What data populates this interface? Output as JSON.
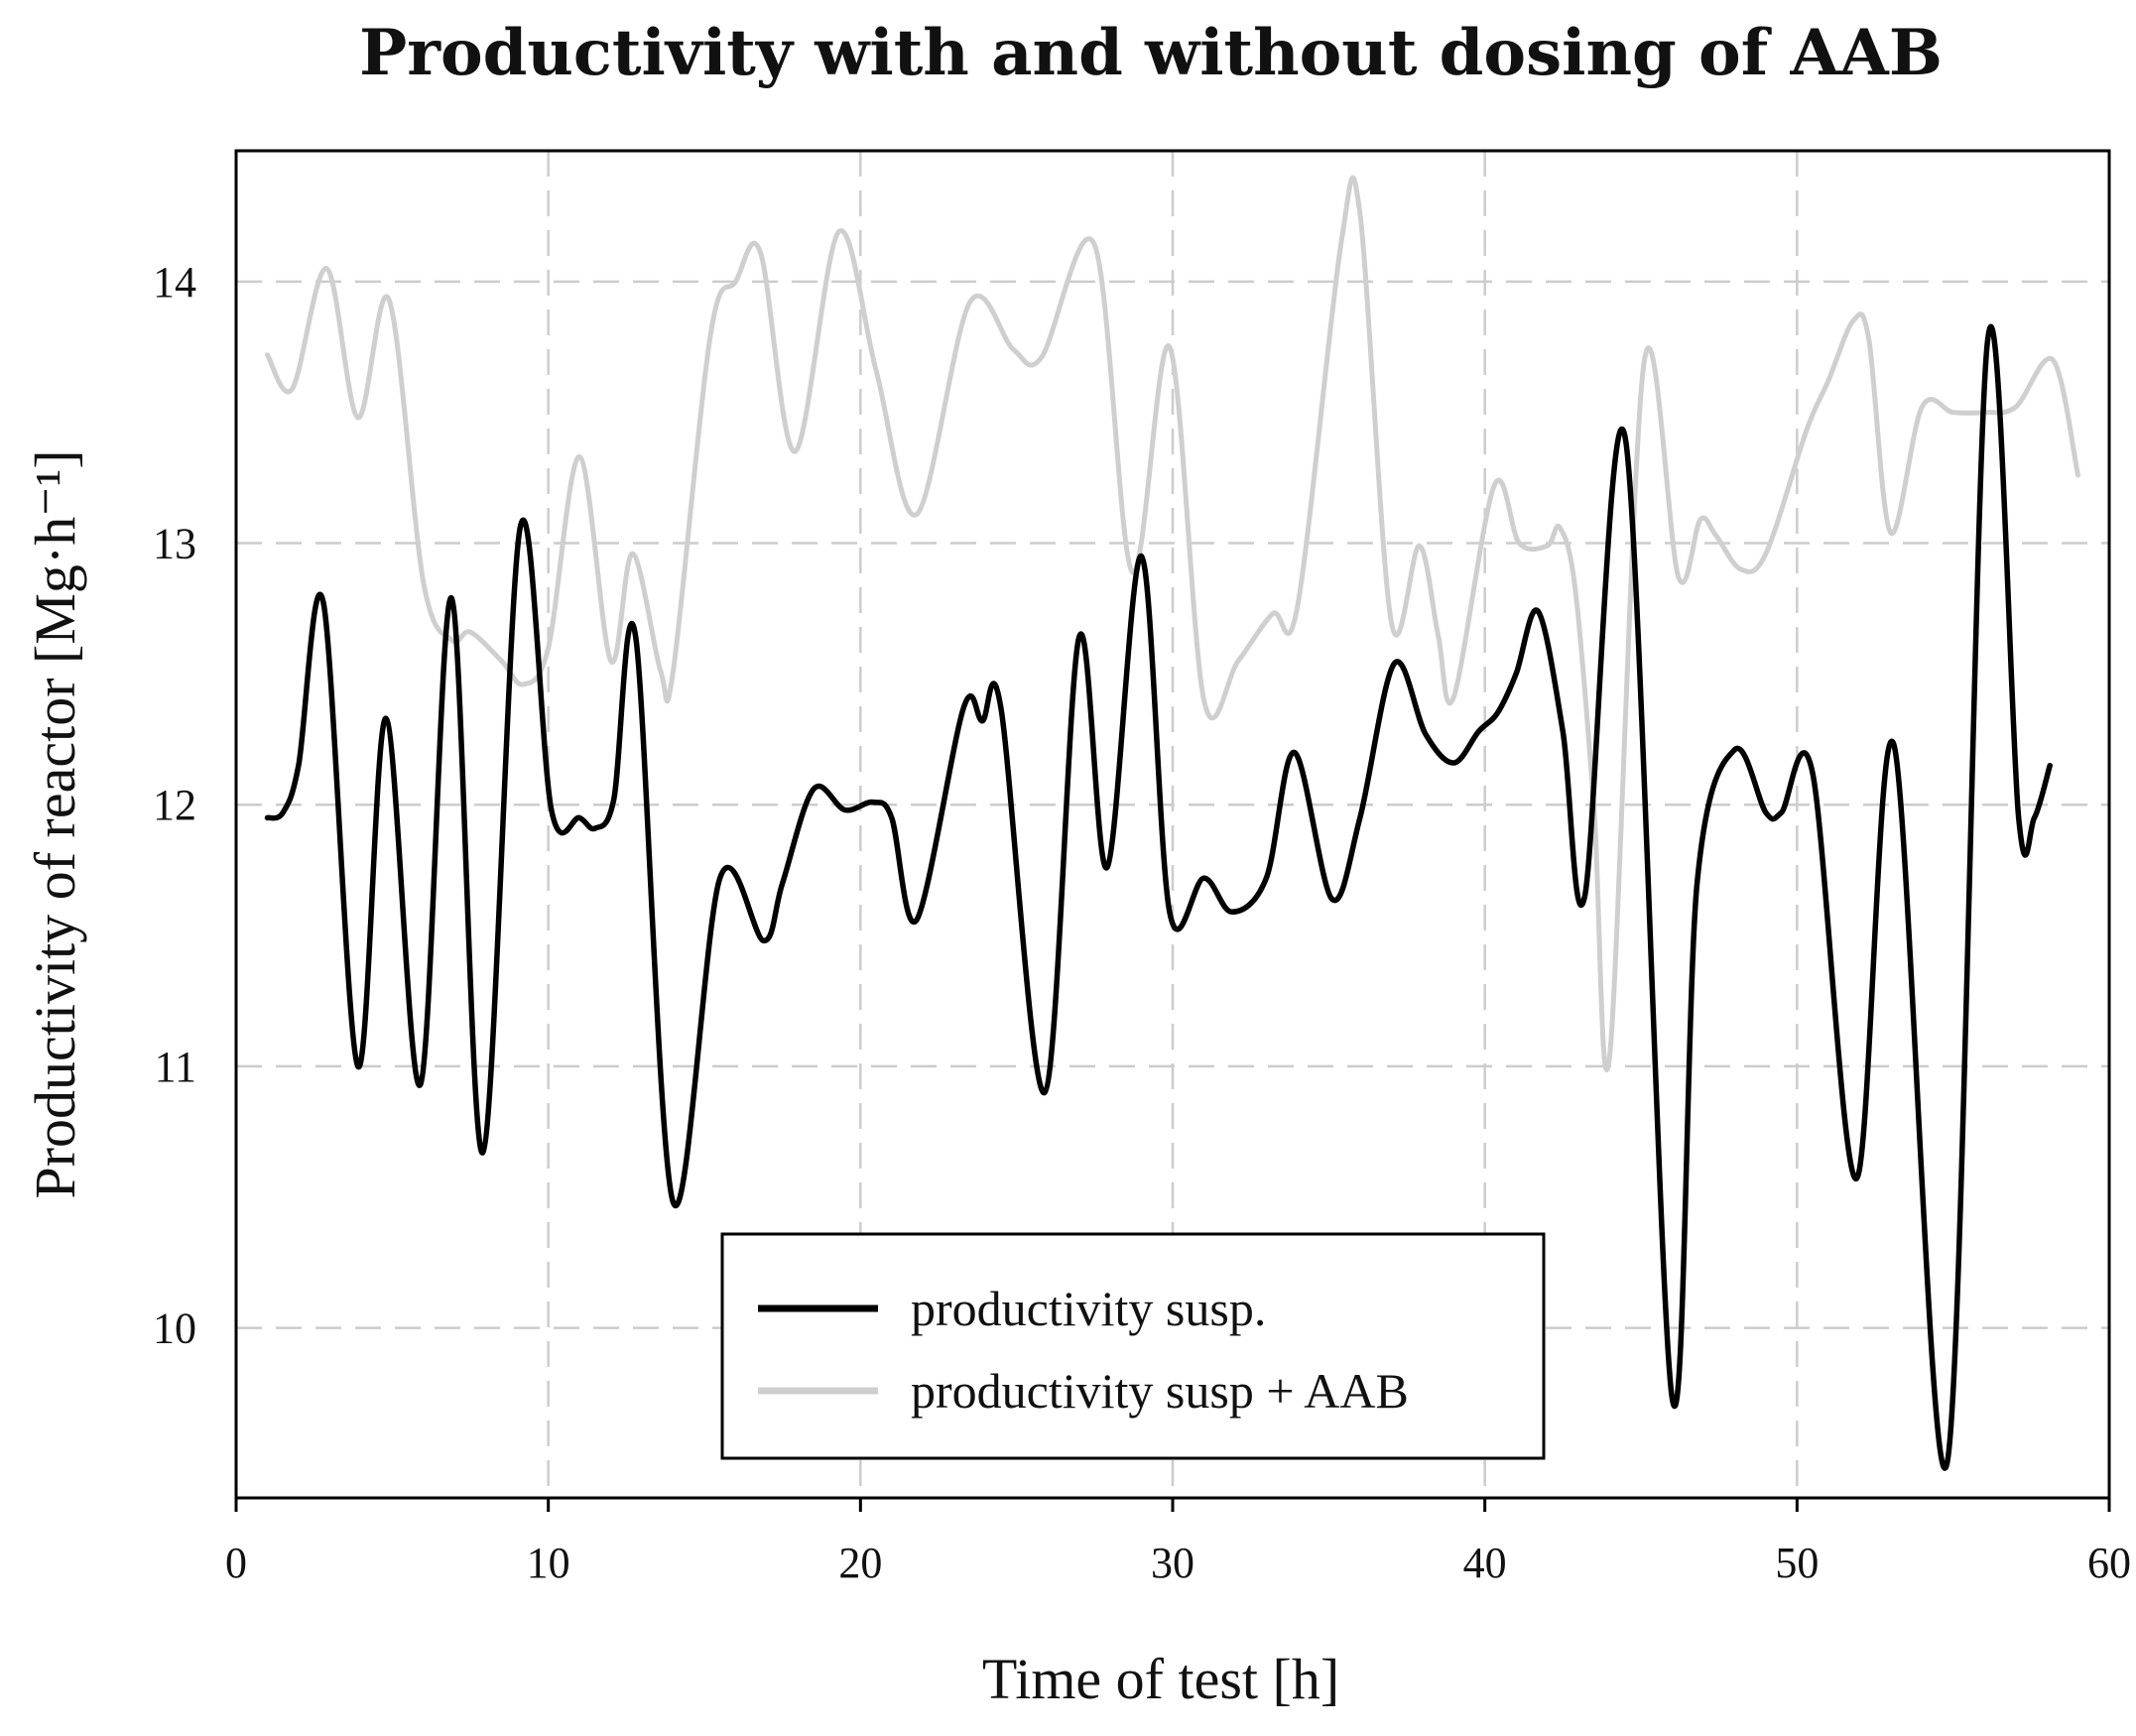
{
  "chart_data": {
    "type": "line",
    "title": "Productivity with and without dosing of AAB",
    "xlabel": "Time of test [h]",
    "ylabel": "Productivity of reactor [Mg·h⁻¹]",
    "xlim": [
      0,
      60
    ],
    "ylim": [
      9.35,
      14.5
    ],
    "xticks": [
      0,
      10,
      20,
      30,
      40,
      50,
      60
    ],
    "yticks": [
      10,
      11,
      12,
      13,
      14
    ],
    "grid": true,
    "legend_position": "bottom-center",
    "series": [
      {
        "name": "productivity susp.",
        "color": "#000000",
        "x": [
          1,
          1.5,
          2,
          2.8,
          3.9,
          4.8,
          5.9,
          6.9,
          7.9,
          9.1,
          10.1,
          11.0,
          11.5,
          12.1,
          12.8,
          14.0,
          15.5,
          16.9,
          17.5,
          18.5,
          19.5,
          20.4,
          21.0,
          21.8,
          23.3,
          23.9,
          24.5,
          25.9,
          27.0,
          27.9,
          29.0,
          29.9,
          31.0,
          31.9,
          33.0,
          33.9,
          35.1,
          36.0,
          37.1,
          38.1,
          39.0,
          39.8,
          40.4,
          41.0,
          41.7,
          42.5,
          43.2,
          44.5,
          46.0,
          46.8,
          48.0,
          49.0,
          49.5,
          50.5,
          51.9,
          53.1,
          54.8,
          56.1,
          57.1,
          57.6,
          58.1
        ],
        "values": [
          11.95,
          11.97,
          12.15,
          12.77,
          11.0,
          12.33,
          10.93,
          12.79,
          10.67,
          13.06,
          11.98,
          11.95,
          11.91,
          12.02,
          12.64,
          10.48,
          11.72,
          11.48,
          11.7,
          12.06,
          11.98,
          12.01,
          11.95,
          11.56,
          12.37,
          12.32,
          12.37,
          10.9,
          12.64,
          11.76,
          12.95,
          11.59,
          11.72,
          11.59,
          11.72,
          12.2,
          11.64,
          11.95,
          12.54,
          12.27,
          12.16,
          12.28,
          12.35,
          12.5,
          12.74,
          12.28,
          11.65,
          13.4,
          9.73,
          11.7,
          12.21,
          11.97,
          11.97,
          12.12,
          10.57,
          12.23,
          9.48,
          13.77,
          11.95,
          11.95,
          12.15
        ]
      },
      {
        "name": "productivity susp + AAB",
        "color": "#cfcfcf",
        "x": [
          1,
          1.8,
          2.9,
          3.9,
          4.9,
          6.0,
          6.9,
          7.5,
          8.5,
          9.2,
          10.0,
          11.0,
          12.0,
          12.7,
          13.6,
          14.0,
          15.2,
          16.0,
          16.8,
          17.9,
          19.3,
          20.5,
          21.8,
          23.5,
          24.9,
          25.8,
          27.5,
          28.7,
          29.9,
          31.0,
          32.1,
          33.2,
          34.0,
          35.4,
          36.0,
          37.0,
          37.9,
          38.5,
          39.0,
          40.3,
          41.1,
          42.0,
          42.4,
          42.9,
          43.5,
          44.0,
          45.1,
          46.2,
          46.9,
          47.4,
          48.2,
          49.0,
          50.3,
          51.0,
          51.8,
          52.3,
          53.0,
          54.0,
          55.0,
          56.0,
          57.0,
          58.2,
          59.0
        ],
        "values": [
          13.72,
          13.59,
          14.05,
          13.48,
          13.93,
          12.85,
          12.63,
          12.66,
          12.55,
          12.46,
          12.6,
          13.33,
          12.55,
          12.96,
          12.51,
          12.51,
          13.8,
          14.0,
          14.11,
          13.35,
          14.19,
          13.66,
          13.11,
          13.92,
          13.74,
          13.71,
          14.14,
          12.89,
          13.75,
          12.4,
          12.55,
          12.73,
          12.76,
          14.15,
          14.26,
          12.7,
          12.99,
          12.65,
          12.41,
          13.22,
          13.0,
          12.99,
          13.06,
          12.82,
          11.98,
          11.04,
          13.69,
          12.87,
          13.09,
          13.03,
          12.9,
          12.96,
          13.43,
          13.62,
          13.85,
          13.78,
          13.04,
          13.52,
          13.5,
          13.5,
          13.52,
          13.7,
          13.26
        ]
      }
    ]
  }
}
